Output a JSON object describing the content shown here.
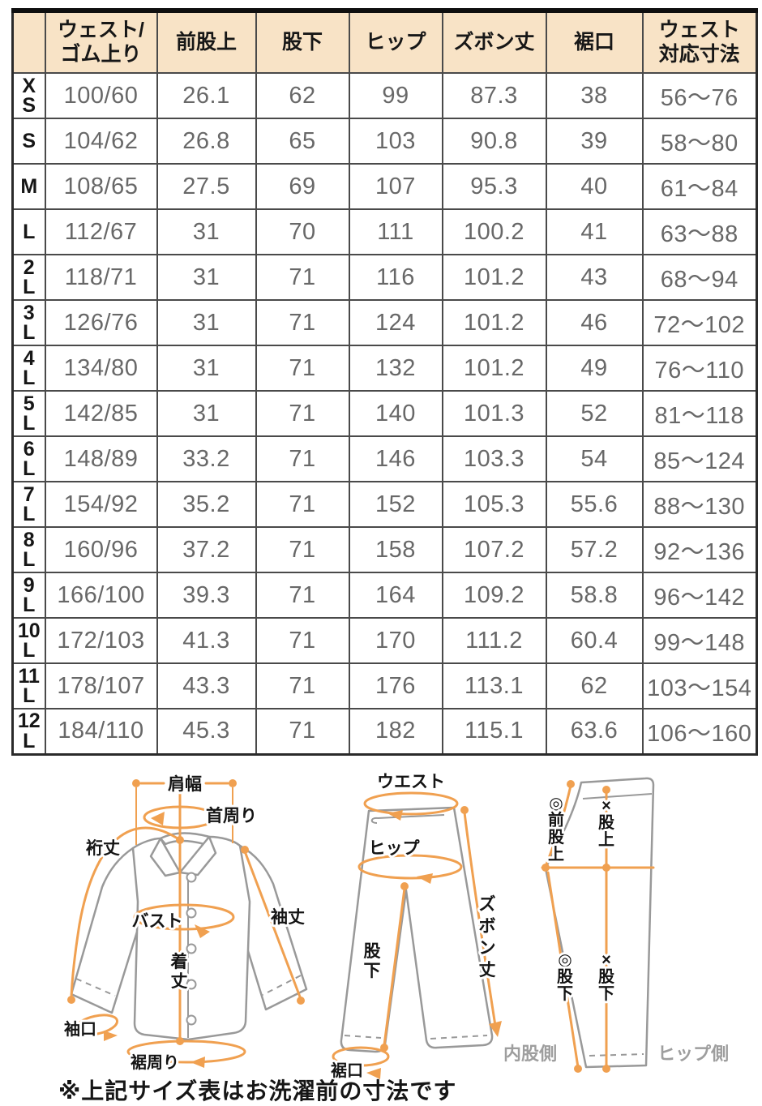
{
  "table": {
    "corner": "",
    "columns": [
      [
        "ウェスト/",
        "ゴム上り"
      ],
      [
        "前股上"
      ],
      [
        "股下"
      ],
      [
        "ヒップ"
      ],
      [
        "ズボン丈"
      ],
      [
        "裾口"
      ],
      [
        "ウェスト",
        "対応寸法"
      ]
    ],
    "rows": [
      {
        "size": "XS",
        "size_lines": [
          "X",
          "S"
        ],
        "cells": [
          "100/60",
          "26.1",
          "62",
          "99",
          "87.3",
          "38",
          "56〜76"
        ]
      },
      {
        "size": "S",
        "size_lines": [
          "S"
        ],
        "cells": [
          "104/62",
          "26.8",
          "65",
          "103",
          "90.8",
          "39",
          "58〜80"
        ]
      },
      {
        "size": "M",
        "size_lines": [
          "M"
        ],
        "cells": [
          "108/65",
          "27.5",
          "69",
          "107",
          "95.3",
          "40",
          "61〜84"
        ]
      },
      {
        "size": "L",
        "size_lines": [
          "L"
        ],
        "cells": [
          "112/67",
          "31",
          "70",
          "111",
          "100.2",
          "41",
          "63〜88"
        ]
      },
      {
        "size": "2L",
        "size_lines": [
          "2",
          "L"
        ],
        "cells": [
          "118/71",
          "31",
          "71",
          "116",
          "101.2",
          "43",
          "68〜94"
        ]
      },
      {
        "size": "3L",
        "size_lines": [
          "3",
          "L"
        ],
        "cells": [
          "126/76",
          "31",
          "71",
          "124",
          "101.2",
          "46",
          "72〜102"
        ]
      },
      {
        "size": "4L",
        "size_lines": [
          "4",
          "L"
        ],
        "cells": [
          "134/80",
          "31",
          "71",
          "132",
          "101.2",
          "49",
          "76〜110"
        ]
      },
      {
        "size": "5L",
        "size_lines": [
          "5",
          "L"
        ],
        "cells": [
          "142/85",
          "31",
          "71",
          "140",
          "101.3",
          "52",
          "81〜118"
        ]
      },
      {
        "size": "6L",
        "size_lines": [
          "6",
          "L"
        ],
        "cells": [
          "148/89",
          "33.2",
          "71",
          "146",
          "103.3",
          "54",
          "85〜124"
        ]
      },
      {
        "size": "7L",
        "size_lines": [
          "7",
          "L"
        ],
        "cells": [
          "154/92",
          "35.2",
          "71",
          "152",
          "105.3",
          "55.6",
          "88〜130"
        ]
      },
      {
        "size": "8L",
        "size_lines": [
          "8",
          "L"
        ],
        "cells": [
          "160/96",
          "37.2",
          "71",
          "158",
          "107.2",
          "57.2",
          "92〜136"
        ]
      },
      {
        "size": "9L",
        "size_lines": [
          "9",
          "L"
        ],
        "cells": [
          "166/100",
          "39.3",
          "71",
          "164",
          "109.2",
          "58.8",
          "96〜142"
        ]
      },
      {
        "size": "10L",
        "size_lines": [
          "10",
          "L"
        ],
        "cells": [
          "172/103",
          "41.3",
          "71",
          "170",
          "111.2",
          "60.4",
          "99〜148"
        ]
      },
      {
        "size": "11L",
        "size_lines": [
          "11",
          "L"
        ],
        "cells": [
          "178/107",
          "43.3",
          "71",
          "176",
          "113.1",
          "62",
          "103〜154"
        ]
      },
      {
        "size": "12L",
        "size_lines": [
          "12",
          "L"
        ],
        "cells": [
          "184/110",
          "45.3",
          "71",
          "182",
          "115.1",
          "63.6",
          "106〜160"
        ]
      }
    ]
  },
  "diagrams": {
    "shirt": {
      "shoulder_width": "肩幅",
      "neck_circumference": "首周り",
      "yuki_length": "裄丈",
      "bust": "バスト",
      "sleeve_length": "袖丈",
      "body_length": "着丈",
      "cuff_opening": "袖口",
      "hem_circumference": "裾周り"
    },
    "pants_front": {
      "waist": "ウエスト",
      "hip": "ヒップ",
      "pants_length": "ズボン丈",
      "inseam": "股下",
      "hem_opening": "裾口"
    },
    "pants_side": {
      "front_rise": "◎前股上",
      "rise": "×股上",
      "inseam_inner": "◎股下",
      "inseam_outer": "×股下",
      "inner_thigh_side": "内股側",
      "hip_side": "ヒップ側"
    }
  },
  "note": "※上記サイズ表はお洗濯前の寸法です",
  "colors": {
    "header_bg": "#f8e3c6",
    "table_border": "#4a4a4a",
    "data_text": "#686868",
    "accent_orange": "#f0a050",
    "garment_outline": "#999999",
    "side_label_gray": "#9e9e9e"
  }
}
